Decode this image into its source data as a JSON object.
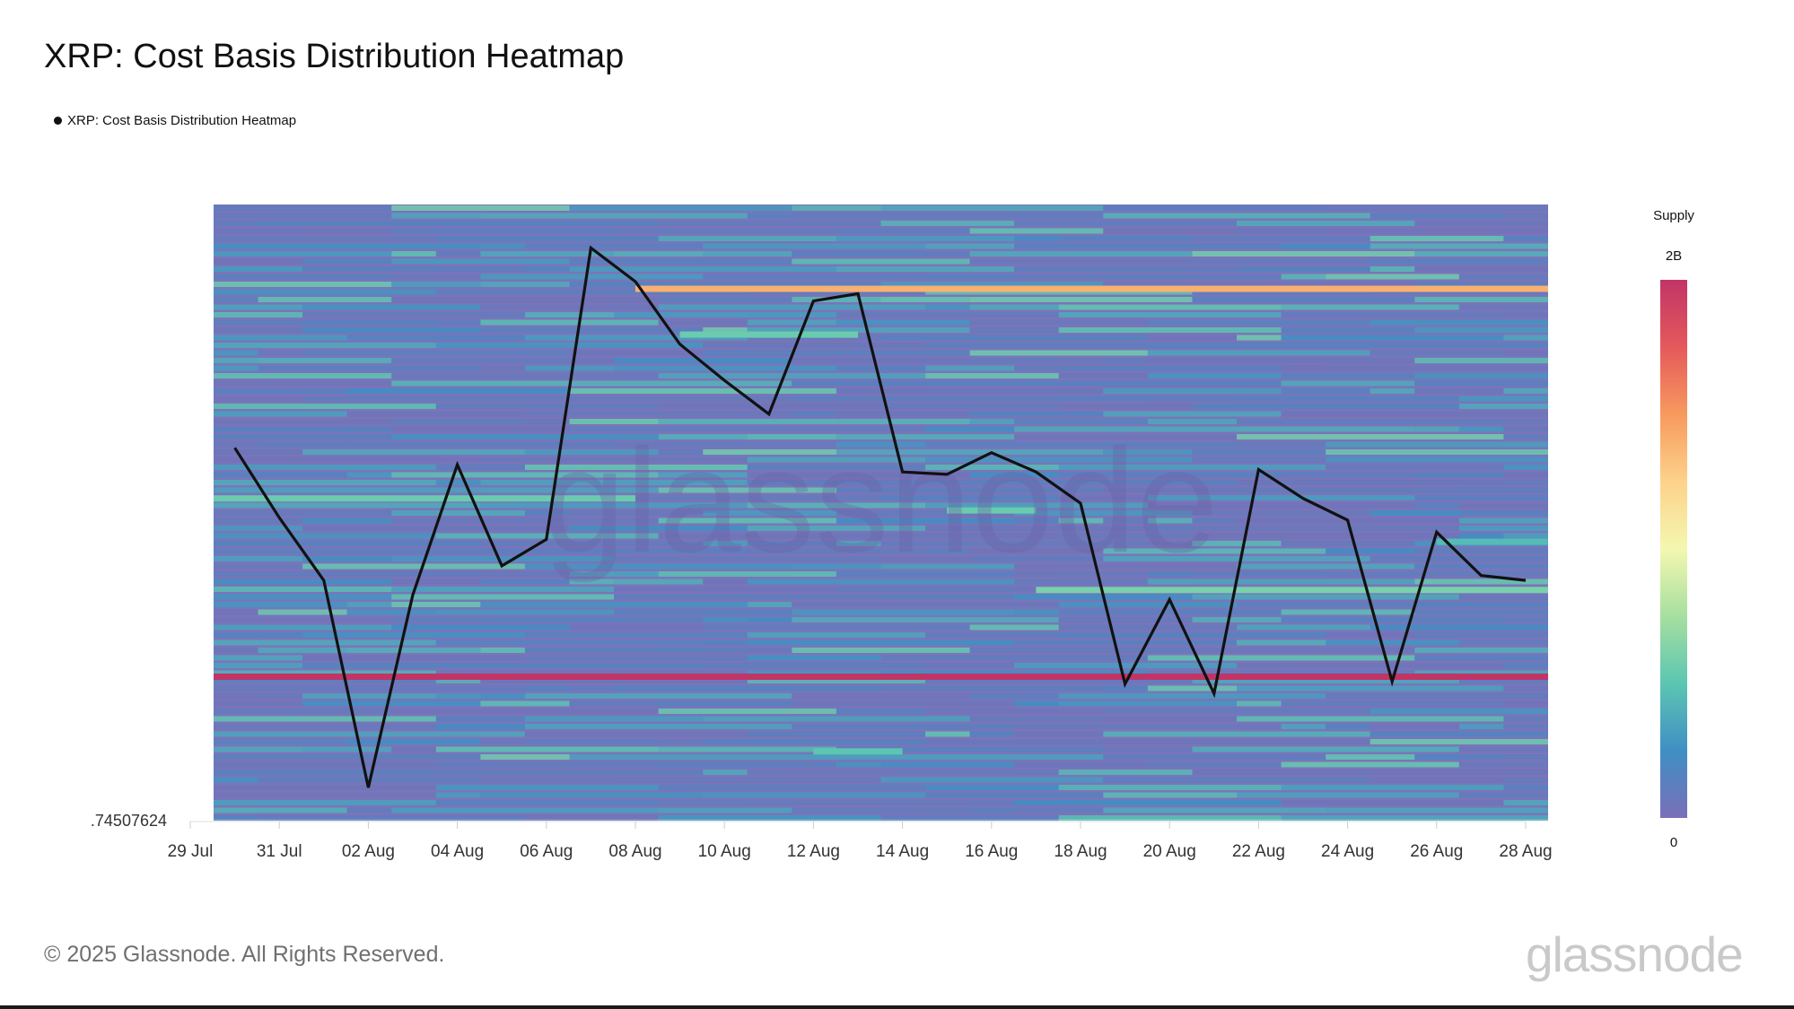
{
  "title": "XRP: Cost Basis Distribution Heatmap",
  "legend_label": "XRP: Cost Basis Distribution Heatmap",
  "footer": {
    "copyright": "© 2025 Glassnode. All Rights Reserved.",
    "brand": "glassnode"
  },
  "colorbar": {
    "title": "Supply",
    "max_label": "2B",
    "min_label": "0",
    "stops": [
      "#7a6fb8",
      "#3f8fc4",
      "#5cc6b2",
      "#a6dfa0",
      "#f4f7b0",
      "#fdd28b",
      "#f79a5e",
      "#e5595c",
      "#c23466"
    ]
  },
  "chart_data": {
    "type": "heatmap",
    "title": "XRP: Cost Basis Distribution Heatmap",
    "y_tick_label": ".74507624",
    "x_ticks": [
      "29 Jul",
      "31 Jul",
      "02 Aug",
      "04 Aug",
      "06 Aug",
      "08 Aug",
      "10 Aug",
      "12 Aug",
      "14 Aug",
      "16 Aug",
      "18 Aug",
      "20 Aug",
      "22 Aug",
      "24 Aug",
      "26 Aug",
      "28 Aug"
    ],
    "x_range": [
      "2025-07-29",
      "2025-08-28"
    ],
    "price_range": [
      0.745,
      1.0
    ],
    "heat_bands": [
      {
        "price": 0.965,
        "supply": 1.4,
        "from": "2025-08-08",
        "to": "2025-08-29"
      },
      {
        "price": 0.804,
        "supply": 2.0,
        "from": "2025-07-29",
        "to": "2025-08-29"
      },
      {
        "price": 0.878,
        "supply": 0.55,
        "from": "2025-07-29",
        "to": "2025-08-08"
      },
      {
        "price": 0.84,
        "supply": 0.6,
        "from": "2025-08-17",
        "to": "2025-08-29"
      },
      {
        "price": 0.946,
        "supply": 0.55,
        "from": "2025-08-09",
        "to": "2025-08-13"
      },
      {
        "price": 0.873,
        "supply": 0.55,
        "from": "2025-08-15",
        "to": "2025-08-17"
      },
      {
        "price": 0.773,
        "supply": 0.5,
        "from": "2025-08-12",
        "to": "2025-08-14"
      },
      {
        "price": 0.86,
        "supply": 0.45,
        "from": "2025-08-26",
        "to": "2025-08-29"
      }
    ],
    "series": [
      {
        "x": [
          "2025-07-30",
          "2025-07-31",
          "2025-08-01",
          "2025-08-02",
          "2025-08-03",
          "2025-08-04",
          "2025-08-05",
          "2025-08-06",
          "2025-08-07",
          "2025-08-08",
          "2025-08-09",
          "2025-08-10",
          "2025-08-11",
          "2025-08-12",
          "2025-08-13",
          "2025-08-14",
          "2025-08-15",
          "2025-08-16",
          "2025-08-17",
          "2025-08-18",
          "2025-08-19",
          "2025-08-20",
          "2025-08-21",
          "2025-08-22",
          "2025-08-23",
          "2025-08-24",
          "2025-08-25",
          "2025-08-26",
          "2025-08-27",
          "2025-08-28"
        ],
        "y": [
          0.899,
          0.87,
          0.844,
          0.758,
          0.838,
          0.892,
          0.85,
          0.861,
          0.982,
          0.968,
          0.942,
          0.927,
          0.913,
          0.96,
          0.963,
          0.889,
          0.888,
          0.897,
          0.889,
          0.876,
          0.801,
          0.836,
          0.797,
          0.89,
          0.878,
          0.869,
          0.802,
          0.864,
          0.846,
          0.844
        ]
      }
    ],
    "colorbar": {
      "title": "Supply",
      "range": [
        0,
        2.0
      ],
      "max_label": "2B",
      "min_label": "0"
    },
    "grid": false,
    "legend": "top-left"
  }
}
